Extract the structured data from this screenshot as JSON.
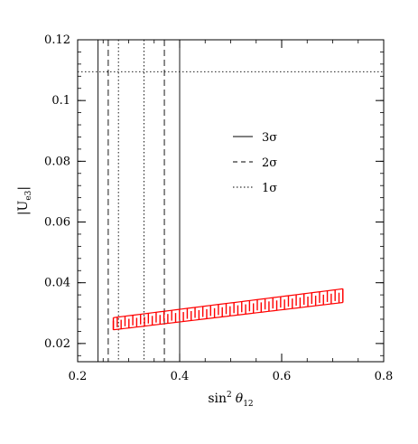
{
  "chart_data": {
    "type": "line",
    "xlabel": "sin² θ₁₂",
    "xlabel_main": "sin",
    "xlabel_sup": "2",
    "xlabel_theta": "θ",
    "xlabel_sub": "12",
    "ylabel": "|Uₑ₃|",
    "ylabel_open": "|U",
    "ylabel_sub": "e3",
    "ylabel_close": "|",
    "xlim": [
      0.2,
      0.8
    ],
    "ylim": [
      0.014,
      0.12
    ],
    "xticks": [
      0.2,
      0.4,
      0.6,
      0.8
    ],
    "xtick_labels": [
      "0.2",
      "0.4",
      "0.6",
      "0.8"
    ],
    "yticks": [
      0.02,
      0.04,
      0.06,
      0.08,
      0.1,
      0.12
    ],
    "ytick_labels": [
      "0.02",
      "0.04",
      "0.06",
      "0.08",
      "0.1",
      "0.12"
    ],
    "grid": false,
    "legend_position": "center-right",
    "legend": [
      {
        "label": "3σ",
        "style": "solid"
      },
      {
        "label": "2σ",
        "style": "dashed"
      },
      {
        "label": "1σ",
        "style": "dotted"
      }
    ],
    "vertical_bounds": [
      {
        "level": "3σ",
        "style": "solid",
        "x": [
          0.24,
          0.4
        ]
      },
      {
        "level": "2σ",
        "style": "dashed",
        "x": [
          0.26,
          0.37
        ]
      },
      {
        "level": "1σ",
        "style": "dotted",
        "x": [
          0.28,
          0.33
        ]
      }
    ],
    "horizontal_bounds": [
      {
        "level": "1σ",
        "style": "dotted",
        "y": 0.1095
      }
    ],
    "band": {
      "color": "#ff0000",
      "x_range": [
        0.27,
        0.72
      ],
      "lower_edge": {
        "x": [
          0.27,
          0.72
        ],
        "y": [
          0.0245,
          0.0335
        ]
      },
      "upper_edge": {
        "x": [
          0.27,
          0.72
        ],
        "y": [
          0.0285,
          0.038
        ]
      },
      "stripe_count": 60
    }
  }
}
